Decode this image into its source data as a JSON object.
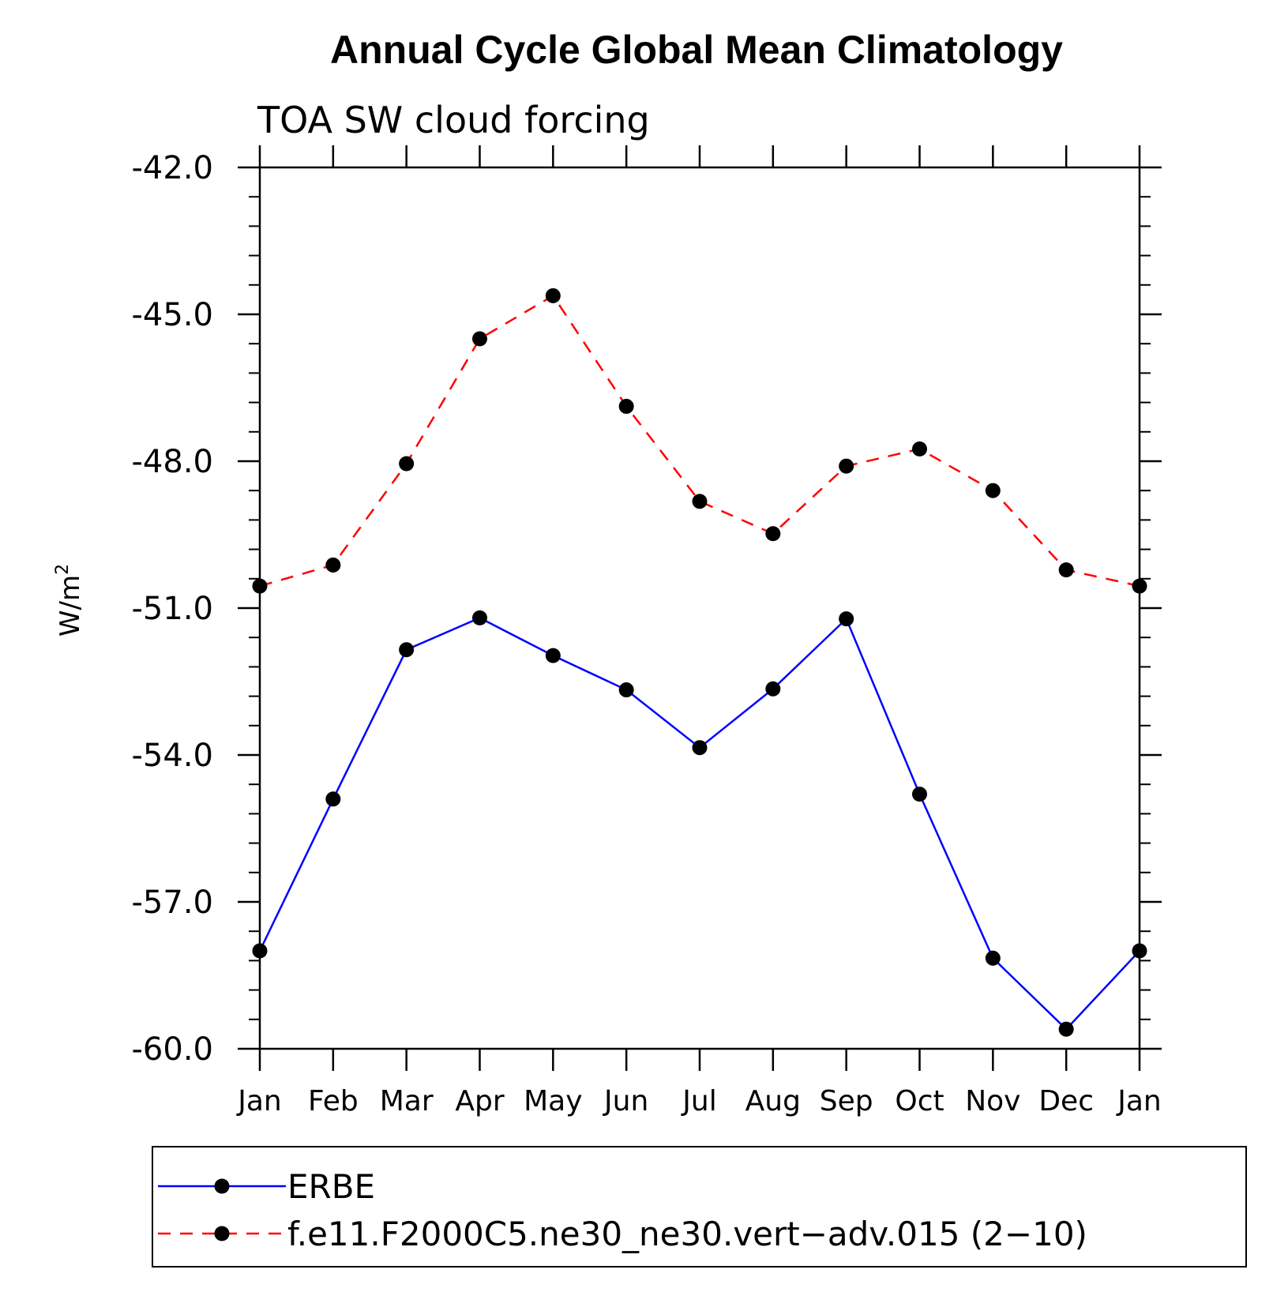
{
  "chart_data": {
    "type": "line",
    "title": "Annual Cycle Global Mean Climatology",
    "subtitle": "TOA SW cloud forcing",
    "ylabel": "W/m",
    "ylabel_superscript": "2",
    "xlabel": "",
    "categories": [
      "Jan",
      "Feb",
      "Mar",
      "Apr",
      "May",
      "Jun",
      "Jul",
      "Aug",
      "Sep",
      "Oct",
      "Nov",
      "Dec",
      "Jan"
    ],
    "ylim": [
      -60.0,
      -42.0
    ],
    "yticks": [
      "-42.0",
      "-45.0",
      "-48.0",
      "-51.0",
      "-54.0",
      "-57.0",
      "-60.0"
    ],
    "ytick_values": [
      -42.0,
      -45.0,
      -48.0,
      -51.0,
      -54.0,
      -57.0,
      -60.0
    ],
    "grid": false,
    "legend_position": "bottom",
    "series": [
      {
        "name": "ERBE",
        "color": "#0000ff",
        "dash": "solid",
        "marker": "filled-circle",
        "values": [
          -58.0,
          -54.9,
          -51.85,
          -51.2,
          -51.97,
          -52.67,
          -53.85,
          -52.65,
          -51.22,
          -54.8,
          -58.15,
          -59.6,
          -58.0
        ]
      },
      {
        "name": "f.e11.F2000C5.ne30_ne30.vert−adv.015 (2−10)",
        "color": "#ff0000",
        "dash": "dashed",
        "marker": "filled-circle",
        "values": [
          -50.55,
          -50.12,
          -48.05,
          -45.5,
          -44.62,
          -46.88,
          -48.82,
          -49.48,
          -48.1,
          -47.75,
          -48.6,
          -50.22,
          -50.55
        ]
      }
    ]
  }
}
